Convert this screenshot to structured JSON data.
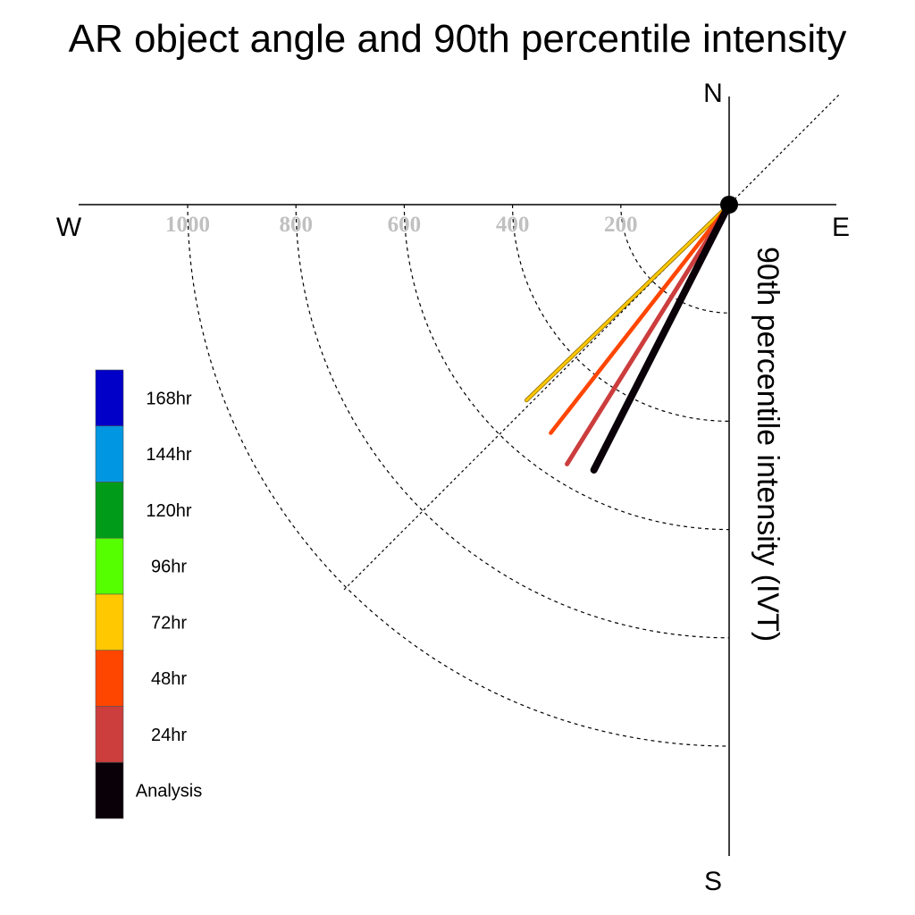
{
  "chart_data": {
    "type": "polar-vector",
    "title": "AR object angle and 90th percentile intensity",
    "ylabel": "90th percentile intensity (IVT)",
    "compass": {
      "north": "N",
      "south": "S",
      "east": "E",
      "west": "W"
    },
    "radial_ticks": [
      {
        "value": 200,
        "label": "200"
      },
      {
        "value": 400,
        "label": "400"
      },
      {
        "value": 600,
        "label": "600"
      },
      {
        "value": 800,
        "label": "800"
      },
      {
        "value": 1000,
        "label": "1000"
      }
    ],
    "rmax": 1200,
    "legend": [
      {
        "label": "168hr",
        "color": "#0000c8"
      },
      {
        "label": "144hr",
        "color": "#0096e1"
      },
      {
        "label": "120hr",
        "color": "#009b19"
      },
      {
        "label": "96hr",
        "color": "#55ff00"
      },
      {
        "label": "72hr",
        "color": "#ffc800"
      },
      {
        "label": "48hr",
        "color": "#ff4600"
      },
      {
        "label": "24hr",
        "color": "#cc3d3d"
      },
      {
        "label": "Analysis",
        "color": "#0a0008"
      }
    ],
    "series": [
      {
        "lead": "72hr",
        "color": "#ffc800",
        "angle_deg": 226,
        "intensity": 520
      },
      {
        "lead": "48hr",
        "color": "#ff4600",
        "angle_deg": 218,
        "intensity": 535
      },
      {
        "lead": "24hr",
        "color": "#cc3d3d",
        "angle_deg": 212,
        "intensity": 565
      },
      {
        "lead": "Analysis",
        "color": "#0a0008",
        "angle_deg": 207,
        "intensity": 550
      }
    ]
  }
}
